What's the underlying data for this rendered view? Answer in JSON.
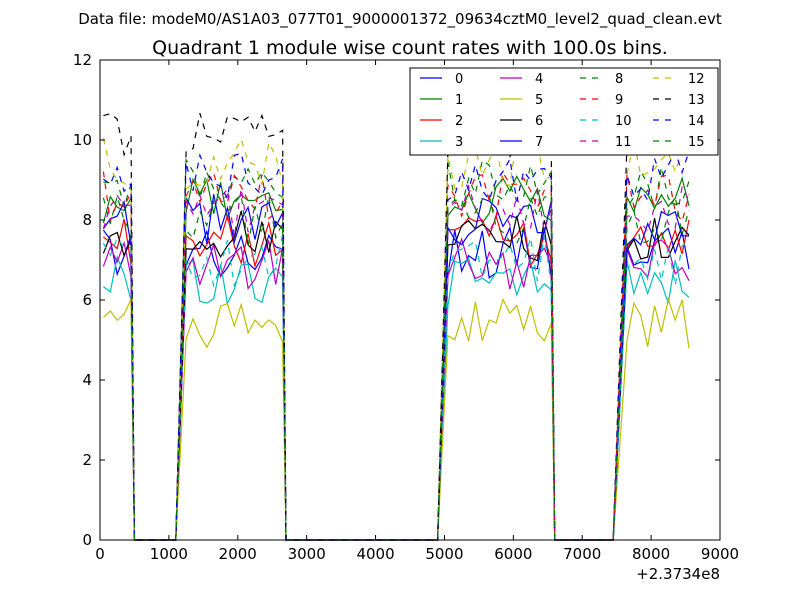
{
  "chart_data": {
    "type": "line",
    "suptitle": "Data file: modeM0/AS1A03_077T01_9000001372_09634cztM0_level2_quad_clean.evt",
    "title": "Quadrant 1 module wise count rates with 100.0s bins.",
    "xlabel": "",
    "ylabel": "",
    "x_offset_label": "+2.3734e8",
    "xlim": [
      0,
      9000
    ],
    "ylim": [
      0,
      12
    ],
    "xticks": [
      0,
      1000,
      2000,
      3000,
      4000,
      5000,
      6000,
      7000,
      8000,
      9000
    ],
    "yticks": [
      0,
      2,
      4,
      6,
      8,
      10,
      12
    ],
    "legend_position": "top-right",
    "gap_ranges": [
      [
        500,
        1100
      ],
      [
        2700,
        4900
      ],
      [
        6600,
        7450
      ]
    ],
    "segments": [
      {
        "start": 50,
        "points": 5
      },
      {
        "start": 1250,
        "points": 15
      },
      {
        "start": 5050,
        "points": 16
      },
      {
        "start": 7650,
        "points": 10
      }
    ],
    "series": [
      {
        "name": "0",
        "color": "#0000ff",
        "dash": "solid",
        "base": 7.2
      },
      {
        "name": "1",
        "color": "#008000",
        "dash": "solid",
        "base": 8.5
      },
      {
        "name": "2",
        "color": "#ff0000",
        "dash": "solid",
        "base": 7.5
      },
      {
        "name": "3",
        "color": "#00bfbf",
        "dash": "solid",
        "base": 6.5
      },
      {
        "name": "4",
        "color": "#bf00bf",
        "dash": "solid",
        "base": 6.9
      },
      {
        "name": "5",
        "color": "#bfbf00",
        "dash": "solid",
        "base": 5.4
      },
      {
        "name": "6",
        "color": "#000000",
        "dash": "solid",
        "base": 7.6
      },
      {
        "name": "7",
        "color": "#0000ff",
        "dash": "solid",
        "base": 8.0
      },
      {
        "name": "8",
        "color": "#008000",
        "dash": "dashed",
        "base": 8.9
      },
      {
        "name": "9",
        "color": "#ff0000",
        "dash": "dashed",
        "base": 8.6
      },
      {
        "name": "10",
        "color": "#00bfbf",
        "dash": "dashed",
        "base": 7.0
      },
      {
        "name": "11",
        "color": "#bf00bf",
        "dash": "dashed",
        "base": 8.2
      },
      {
        "name": "12",
        "color": "#bfbf00",
        "dash": "dashed",
        "base": 9.4
      },
      {
        "name": "13",
        "color": "#000000",
        "dash": "dashed",
        "base": 10.2
      },
      {
        "name": "14",
        "color": "#0000ff",
        "dash": "dashed",
        "base": 9.1
      },
      {
        "name": "15",
        "color": "#008000",
        "dash": "dashed",
        "base": 8.0
      }
    ]
  }
}
